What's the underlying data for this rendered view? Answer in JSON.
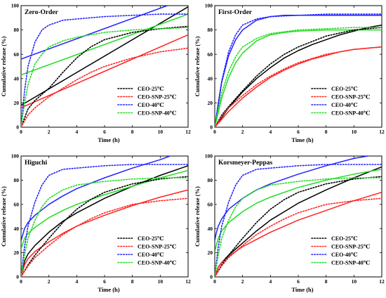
{
  "figure": {
    "xlabel": "Time (h)",
    "ylabel": "Cumulative release (%)"
  },
  "legend": [
    "CEO-25℃",
    "CEO-SNP-25℃",
    "CEO-40℃",
    "CEO-SNP-40℃"
  ],
  "colors": {
    "CEO-25℃": "#000000",
    "CEO-SNP-25℃": "#ff2222",
    "CEO-40℃": "#2222ff",
    "CEO-SNP-40℃": "#22dd22"
  },
  "chart_data": [
    {
      "type": "line",
      "title": "Zero-Order",
      "xlabel": "Time (h)",
      "ylabel": "Cumulative release (%)",
      "xlim": [
        0,
        12
      ],
      "ylim": [
        0,
        100
      ],
      "xticks": [
        0,
        2,
        4,
        6,
        8,
        10,
        12
      ],
      "yticks": [
        0,
        20,
        40,
        60,
        80,
        100
      ],
      "legend_position": "bottom-right",
      "grid": false,
      "experimental_dotted": [
        {
          "name": "CEO-25℃",
          "x": [
            0,
            0.5,
            1,
            2,
            3,
            4,
            5,
            6,
            8,
            10,
            12
          ],
          "y": [
            0,
            15,
            22,
            32,
            45,
            57,
            66,
            72,
            78,
            81,
            83
          ]
        },
        {
          "name": "CEO-SNP-25℃",
          "x": [
            0,
            0.5,
            1,
            2,
            3,
            4,
            5,
            6,
            8,
            10,
            12
          ],
          "y": [
            0,
            10,
            16,
            25,
            32,
            39,
            45,
            50,
            57,
            62,
            65
          ]
        },
        {
          "name": "CEO-40℃",
          "x": [
            0,
            0.25,
            0.5,
            1,
            1.5,
            2,
            3,
            4,
            6,
            8,
            10,
            12
          ],
          "y": [
            0,
            30,
            50,
            70,
            80,
            84,
            88,
            89,
            91,
            92,
            93,
            93
          ]
        },
        {
          "name": "CEO-SNP-40℃",
          "x": [
            0,
            0.25,
            0.5,
            1,
            1.5,
            2,
            3,
            4,
            6,
            8,
            10,
            12
          ],
          "y": [
            0,
            20,
            35,
            52,
            60,
            66,
            71,
            74,
            78,
            80,
            81,
            82
          ]
        }
      ],
      "model_fit": [
        {
          "name": "CEO-25℃",
          "x": [
            0,
            12
          ],
          "y": [
            18,
            99
          ]
        },
        {
          "name": "CEO-SNP-25℃",
          "x": [
            0,
            12
          ],
          "y": [
            16,
            76
          ]
        },
        {
          "name": "CEO-40℃",
          "x": [
            0,
            10.5
          ],
          "y": [
            56,
            100
          ]
        },
        {
          "name": "CEO-SNP-40℃",
          "x": [
            0,
            12
          ],
          "y": [
            43,
            93
          ]
        }
      ]
    },
    {
      "type": "line",
      "title": "First-Order",
      "xlabel": "Time (h)",
      "ylabel": "Cumulative release (%)",
      "xlim": [
        0,
        12
      ],
      "ylim": [
        0,
        100
      ],
      "xticks": [
        0,
        2,
        4,
        6,
        8,
        10,
        12
      ],
      "yticks": [
        0,
        20,
        40,
        60,
        80,
        100
      ],
      "legend_position": "bottom-right",
      "grid": false,
      "experimental_dotted": [
        {
          "name": "CEO-25℃",
          "x": [
            0,
            0.5,
            1,
            2,
            3,
            4,
            5,
            6,
            8,
            10,
            12
          ],
          "y": [
            0,
            10,
            17,
            30,
            42,
            52,
            60,
            66,
            75,
            80,
            82
          ]
        },
        {
          "name": "CEO-SNP-25℃",
          "x": [
            0,
            0.5,
            1,
            2,
            3,
            4,
            5,
            6,
            8,
            10,
            12
          ],
          "y": [
            0,
            9,
            16,
            26,
            35,
            42,
            48,
            53,
            60,
            64,
            66
          ]
        },
        {
          "name": "CEO-40℃",
          "x": [
            0,
            0.25,
            0.5,
            1,
            1.5,
            2,
            3,
            4,
            6,
            8,
            10,
            12
          ],
          "y": [
            0,
            20,
            38,
            62,
            76,
            84,
            89,
            91,
            92,
            93,
            93,
            93
          ]
        },
        {
          "name": "CEO-SNP-40℃",
          "x": [
            0,
            0.25,
            0.5,
            1,
            1.5,
            2,
            3,
            4,
            6,
            8,
            10,
            12
          ],
          "y": [
            0,
            15,
            28,
            46,
            58,
            66,
            73,
            77,
            80,
            81,
            82,
            82
          ]
        }
      ],
      "model_fit": [
        {
          "name": "CEO-25℃",
          "x": [
            0,
            1,
            2,
            3,
            4,
            5,
            6,
            7,
            8,
            9,
            10,
            11,
            12
          ],
          "y": [
            0,
            16,
            29,
            40,
            49,
            57,
            63,
            68,
            72,
            76,
            79,
            82,
            84
          ]
        },
        {
          "name": "CEO-SNP-25℃",
          "x": [
            0,
            1,
            2,
            3,
            4,
            5,
            6,
            7,
            8,
            9,
            10,
            11,
            12
          ],
          "y": [
            0,
            13,
            24,
            33,
            41,
            47,
            52,
            56,
            59,
            62,
            64,
            65,
            66
          ]
        },
        {
          "name": "CEO-40℃",
          "x": [
            0,
            0.5,
            1,
            1.5,
            2,
            3,
            4,
            5,
            6,
            8,
            10,
            12
          ],
          "y": [
            0,
            37,
            59,
            72,
            80,
            88,
            91,
            92,
            92,
            92,
            92,
            92
          ]
        },
        {
          "name": "CEO-SNP-40℃",
          "x": [
            0,
            0.5,
            1,
            1.5,
            2,
            3,
            4,
            5,
            6,
            8,
            10,
            12
          ],
          "y": [
            0,
            24,
            41,
            53,
            61,
            71,
            76,
            78,
            79,
            80,
            80,
            80
          ]
        }
      ]
    },
    {
      "type": "line",
      "title": "Higuchi",
      "xlabel": "Time (h)",
      "ylabel": "Cumulative release (%)",
      "xlim": [
        0,
        12
      ],
      "ylim": [
        0,
        100
      ],
      "xticks": [
        0,
        2,
        4,
        6,
        8,
        10,
        12
      ],
      "yticks": [
        0,
        20,
        40,
        60,
        80,
        100
      ],
      "legend_position": "bottom-right",
      "grid": false,
      "experimental_dotted": [
        {
          "name": "CEO-25℃",
          "x": [
            0,
            0.5,
            1,
            2,
            3,
            4,
            5,
            6,
            8,
            10,
            12
          ],
          "y": [
            0,
            10,
            18,
            32,
            45,
            56,
            64,
            70,
            77,
            81,
            83
          ]
        },
        {
          "name": "CEO-SNP-25℃",
          "x": [
            0,
            0.5,
            1,
            2,
            3,
            4,
            5,
            6,
            8,
            10,
            12
          ],
          "y": [
            0,
            9,
            16,
            26,
            35,
            42,
            48,
            53,
            60,
            63,
            65
          ]
        },
        {
          "name": "CEO-40℃",
          "x": [
            0,
            0.25,
            0.5,
            1,
            1.5,
            2,
            3,
            4,
            6,
            8,
            10,
            12
          ],
          "y": [
            0,
            25,
            42,
            62,
            76,
            84,
            89,
            90,
            92,
            93,
            93,
            93
          ]
        },
        {
          "name": "CEO-SNP-40℃",
          "x": [
            0,
            0.25,
            0.5,
            1,
            1.5,
            2,
            3,
            4,
            6,
            8,
            10,
            12
          ],
          "y": [
            0,
            18,
            32,
            47,
            58,
            65,
            72,
            76,
            79,
            81,
            82,
            82
          ]
        }
      ],
      "model_fit": [
        {
          "name": "CEO-25℃",
          "x": [
            0,
            0.25,
            0.5,
            1,
            2,
            3,
            4,
            6,
            8,
            10,
            12
          ],
          "y": [
            0,
            13,
            19,
            26,
            37,
            46,
            53,
            65,
            75,
            84,
            92
          ]
        },
        {
          "name": "CEO-SNP-25℃",
          "x": [
            0,
            0.25,
            0.5,
            1,
            2,
            3,
            4,
            6,
            8,
            10,
            12
          ],
          "y": [
            0,
            10,
            15,
            21,
            29,
            36,
            42,
            51,
            59,
            66,
            72
          ]
        },
        {
          "name": "CEO-40℃",
          "x": [
            0,
            0.25,
            0.5,
            1,
            2,
            3,
            4,
            6,
            8,
            10,
            10.7
          ],
          "y": [
            30,
            40,
            45,
            51,
            60,
            67,
            73,
            82,
            90,
            97,
            100
          ]
        },
        {
          "name": "CEO-SNP-40℃",
          "x": [
            0,
            0.25,
            0.5,
            1,
            2,
            3,
            4,
            6,
            8,
            10,
            12
          ],
          "y": [
            23,
            32,
            36,
            41,
            49,
            55,
            60,
            68,
            75,
            82,
            88
          ]
        }
      ]
    },
    {
      "type": "line",
      "title": "Korsmeyer-Peppas",
      "xlabel": "Time (h)",
      "ylabel": "Cumulative release (%)",
      "xlim": [
        0,
        12
      ],
      "ylim": [
        0,
        100
      ],
      "xticks": [
        0,
        2,
        4,
        6,
        8,
        10,
        12
      ],
      "yticks": [
        0,
        20,
        40,
        60,
        80,
        100
      ],
      "legend_position": "bottom-right",
      "grid": false,
      "experimental_dotted": [
        {
          "name": "CEO-25℃",
          "x": [
            0,
            0.5,
            1,
            2,
            3,
            4,
            5,
            6,
            8,
            10,
            12
          ],
          "y": [
            0,
            10,
            18,
            32,
            45,
            56,
            64,
            70,
            77,
            81,
            83
          ]
        },
        {
          "name": "CEO-SNP-25℃",
          "x": [
            0,
            0.5,
            1,
            2,
            3,
            4,
            5,
            6,
            8,
            10,
            12
          ],
          "y": [
            0,
            9,
            16,
            26,
            35,
            42,
            48,
            53,
            60,
            63,
            65
          ]
        },
        {
          "name": "CEO-40℃",
          "x": [
            0,
            0.25,
            0.5,
            1,
            1.5,
            2,
            3,
            4,
            6,
            8,
            10,
            12
          ],
          "y": [
            0,
            25,
            42,
            62,
            76,
            84,
            89,
            90,
            92,
            93,
            93,
            93
          ]
        },
        {
          "name": "CEO-SNP-40℃",
          "x": [
            0,
            0.25,
            0.5,
            1,
            1.5,
            2,
            3,
            4,
            6,
            8,
            10,
            12
          ],
          "y": [
            0,
            18,
            32,
            47,
            58,
            65,
            72,
            76,
            79,
            81,
            82,
            82
          ]
        }
      ],
      "model_fit": [
        {
          "name": "CEO-25℃",
          "x": [
            0,
            0.25,
            0.5,
            1,
            2,
            3,
            4,
            6,
            8,
            10,
            12
          ],
          "y": [
            0,
            8,
            12,
            18,
            28,
            38,
            47,
            61,
            72,
            82,
            91
          ]
        },
        {
          "name": "CEO-SNP-25℃",
          "x": [
            0,
            0.25,
            0.5,
            1,
            2,
            3,
            4,
            6,
            8,
            10,
            12
          ],
          "y": [
            0,
            8,
            12,
            17,
            25,
            31,
            37,
            47,
            55,
            63,
            70
          ]
        },
        {
          "name": "CEO-40℃",
          "x": [
            0,
            0.1,
            0.25,
            0.5,
            1,
            2,
            3,
            4,
            6,
            8,
            10,
            11
          ],
          "y": [
            30,
            36,
            42,
            48,
            56,
            65,
            72,
            77,
            85,
            92,
            98,
            100
          ]
        },
        {
          "name": "CEO-SNP-40℃",
          "x": [
            0,
            0.1,
            0.25,
            0.5,
            1,
            2,
            3,
            4,
            6,
            8,
            10,
            12
          ],
          "y": [
            20,
            26,
            32,
            38,
            45,
            54,
            61,
            66,
            74,
            80,
            85,
            89
          ]
        }
      ]
    }
  ]
}
